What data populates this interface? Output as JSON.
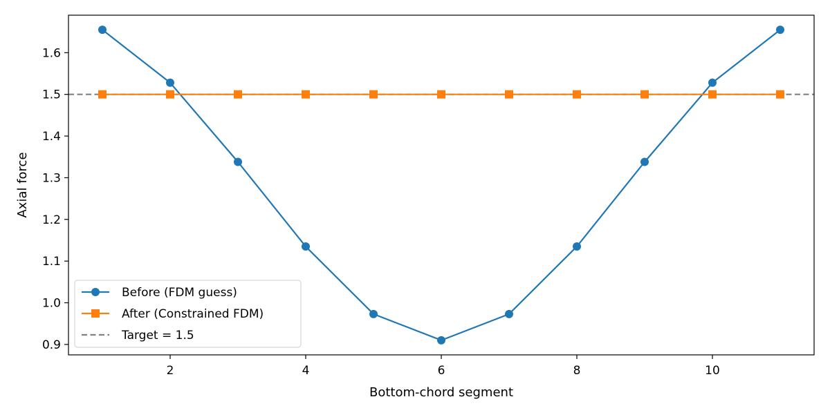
{
  "chart_data": {
    "type": "line",
    "title": "",
    "xlabel": "Bottom-chord segment",
    "ylabel": "Axial force",
    "xlim": [
      0.5,
      11.5
    ],
    "ylim": [
      0.875,
      1.69
    ],
    "x_ticks": [
      2,
      4,
      6,
      8,
      10
    ],
    "y_ticks": [
      0.9,
      1.0,
      1.1,
      1.2,
      1.3,
      1.4,
      1.5,
      1.6
    ],
    "x_tick_labels": [
      "2",
      "4",
      "6",
      "8",
      "10"
    ],
    "y_tick_labels": [
      "0.9",
      "1.0",
      "1.1",
      "1.2",
      "1.3",
      "1.4",
      "1.5",
      "1.6"
    ],
    "grid": false,
    "legend_position": "lower-left",
    "x": [
      1,
      2,
      3,
      4,
      5,
      6,
      7,
      8,
      9,
      10,
      11
    ],
    "series": [
      {
        "name": "Before (FDM guess)",
        "color": "#1f77b4",
        "marker": "circle",
        "values": [
          1.655,
          1.528,
          1.338,
          1.135,
          0.973,
          0.91,
          0.973,
          1.135,
          1.338,
          1.528,
          1.655
        ]
      },
      {
        "name": "After (Constrained FDM)",
        "color": "#ff7f0e",
        "marker": "square",
        "values": [
          1.5,
          1.5,
          1.5,
          1.5,
          1.5,
          1.5,
          1.5,
          1.5,
          1.5,
          1.5,
          1.5
        ]
      }
    ],
    "reference_line": {
      "name": "Target = 1.5",
      "value": 1.5,
      "color": "#808080",
      "style": "dashed"
    }
  }
}
